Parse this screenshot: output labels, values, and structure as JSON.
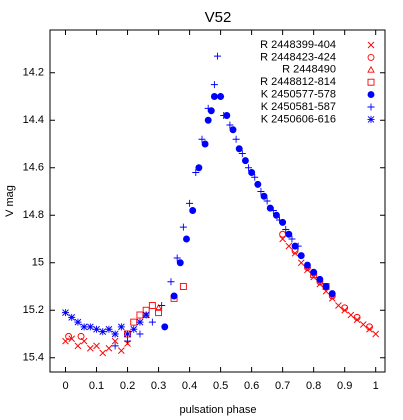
{
  "chart_data": {
    "type": "scatter",
    "title": "V52",
    "x_label": "pulsation phase",
    "y_label": "V mag",
    "xlim": [
      -0.05,
      1.03
    ],
    "ylim": [
      15.46,
      14.02
    ],
    "xticks": [
      0,
      0.1,
      0.2,
      0.3,
      0.4,
      0.5,
      0.6,
      0.7,
      0.8,
      0.9,
      1
    ],
    "yticks": [
      14.2,
      14.4,
      14.6,
      14.8,
      15,
      15.2,
      15.4
    ],
    "legend": "top-right",
    "series": [
      {
        "name": "R 2448399-404",
        "color": "#ff0000",
        "marker": "cross",
        "x": [
          0.0,
          0.02,
          0.04,
          0.06,
          0.08,
          0.1,
          0.12,
          0.14,
          0.16,
          0.18,
          0.2,
          0.7,
          0.72,
          0.74,
          0.76,
          0.78,
          0.8,
          0.82,
          0.84,
          0.86,
          0.88,
          0.9,
          0.92,
          0.94,
          0.96,
          0.98,
          1.0
        ],
        "values": [
          15.33,
          15.32,
          15.35,
          15.33,
          15.36,
          15.35,
          15.38,
          15.36,
          15.33,
          15.37,
          15.34,
          14.9,
          14.93,
          14.96,
          15.0,
          15.03,
          15.06,
          15.09,
          15.12,
          15.15,
          15.18,
          15.2,
          15.22,
          15.24,
          15.26,
          15.28,
          15.3
        ]
      },
      {
        "name": "R 2448423-424",
        "color": "#ff0000",
        "marker": "circle",
        "x": [
          0.7,
          0.74,
          0.78,
          0.82,
          0.86,
          0.9,
          0.94,
          0.98,
          0.01,
          0.05
        ],
        "values": [
          14.88,
          14.95,
          15.02,
          15.08,
          15.14,
          15.19,
          15.23,
          15.27,
          15.31,
          15.31
        ]
      },
      {
        "name": "R 2448490",
        "color": "#ff0000",
        "marker": "triangle",
        "x": [
          0.26,
          0.3
        ],
        "values": [
          15.22,
          15.19
        ]
      },
      {
        "name": "R 2448812-814",
        "color": "#ff0000",
        "marker": "square",
        "x": [
          0.2,
          0.22,
          0.24,
          0.26,
          0.28,
          0.3,
          0.35,
          0.38,
          0.8,
          0.84
        ],
        "values": [
          15.3,
          15.25,
          15.22,
          15.2,
          15.18,
          15.21,
          15.15,
          15.1,
          15.05,
          15.1
        ]
      },
      {
        "name": "K 2450577-578",
        "color": "#0000ff",
        "marker": "dot",
        "x": [
          0.32,
          0.35,
          0.37,
          0.39,
          0.41,
          0.43,
          0.45,
          0.46,
          0.47,
          0.48,
          0.5,
          0.52,
          0.54,
          0.56,
          0.58,
          0.6,
          0.62,
          0.64,
          0.66,
          0.68,
          0.7,
          0.72,
          0.74,
          0.76,
          0.78,
          0.8,
          0.82,
          0.84,
          0.86
        ],
        "values": [
          15.27,
          15.14,
          15.0,
          14.9,
          14.78,
          14.6,
          14.5,
          14.4,
          14.36,
          14.3,
          14.3,
          14.38,
          14.44,
          14.52,
          14.57,
          14.62,
          14.67,
          14.72,
          14.77,
          14.8,
          14.83,
          14.88,
          14.93,
          14.97,
          15.01,
          15.04,
          15.07,
          15.1,
          15.13
        ]
      },
      {
        "name": "K 2450581-587",
        "color": "#0000ff",
        "marker": "plus",
        "x": [
          0.16,
          0.2,
          0.24,
          0.28,
          0.31,
          0.34,
          0.36,
          0.38,
          0.4,
          0.42,
          0.44,
          0.46,
          0.48,
          0.49,
          0.5,
          0.51,
          0.53,
          0.55,
          0.57,
          0.59,
          0.61,
          0.63,
          0.65,
          0.67,
          0.69,
          0.71,
          0.73,
          0.75
        ],
        "values": [
          15.35,
          15.33,
          15.3,
          15.25,
          15.18,
          15.08,
          14.98,
          14.85,
          14.75,
          14.62,
          14.48,
          14.35,
          14.25,
          14.13,
          14.3,
          14.38,
          14.42,
          14.48,
          14.54,
          14.6,
          14.64,
          14.7,
          14.74,
          14.78,
          14.82,
          14.86,
          14.9,
          14.93
        ]
      },
      {
        "name": "K 2450606-616",
        "color": "#0000ff",
        "marker": "asterisk",
        "x": [
          0.0,
          0.02,
          0.04,
          0.06,
          0.08,
          0.1,
          0.12,
          0.14,
          0.16,
          0.18,
          0.2,
          0.22,
          0.24,
          0.26
        ],
        "values": [
          15.21,
          15.23,
          15.25,
          15.27,
          15.27,
          15.28,
          15.29,
          15.28,
          15.3,
          15.27,
          15.3,
          15.28,
          15.25,
          15.22
        ]
      }
    ]
  }
}
